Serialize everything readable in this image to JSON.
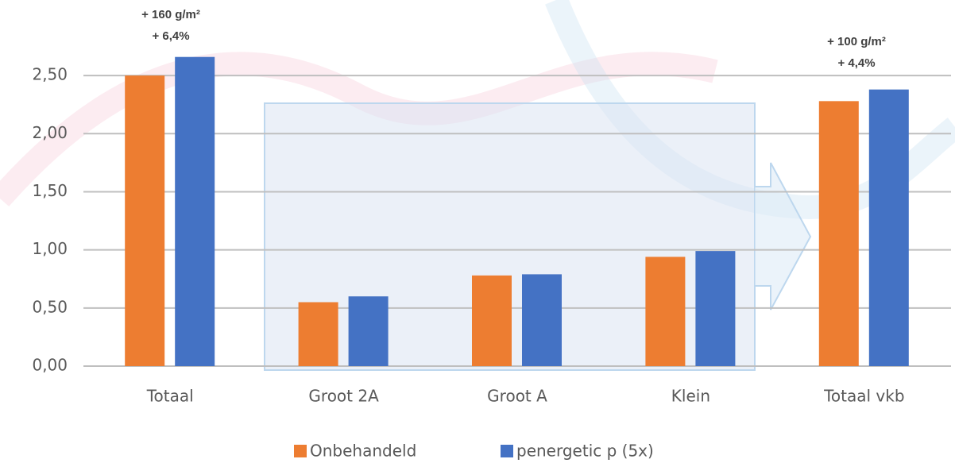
{
  "chart_data": {
    "type": "bar",
    "categories": [
      "Totaal",
      "Groot 2A",
      "Groot A",
      "Klein",
      "Totaal vkb"
    ],
    "series": [
      {
        "name": "Onbehandeld",
        "color": "#ed7d31",
        "values": [
          2.5,
          0.55,
          0.78,
          0.94,
          2.28
        ]
      },
      {
        "name": "penergetic p (5x)",
        "color": "#4472c4",
        "values": [
          2.66,
          0.6,
          0.79,
          0.99,
          2.38
        ]
      }
    ],
    "annotations": [
      "+ 160 g/m²",
      "+ 6,4%",
      "+ 100 g/m²",
      "+ 4,4%"
    ],
    "ylim": [
      0,
      3.15
    ],
    "yticks": [
      {
        "value": 0,
        "label": "0,00"
      },
      {
        "value": 0.5,
        "label": "0,50"
      },
      {
        "value": 1,
        "label": "1,00"
      },
      {
        "value": 1.5,
        "label": "1,50"
      },
      {
        "value": 2,
        "label": "2,00"
      },
      {
        "value": 2.5,
        "label": "2,50"
      }
    ],
    "grid": true,
    "legend": "bottom"
  }
}
